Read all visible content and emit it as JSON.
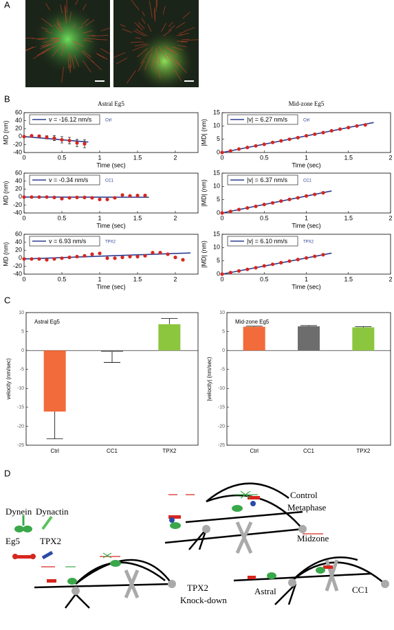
{
  "panel_labels": [
    "A",
    "B",
    "C",
    "D"
  ],
  "chart_data": [
    {
      "type": "scatter",
      "title": "Astral Eg5",
      "annotation": "Ctrl",
      "xlabel": "Time (sec)",
      "ylabel": "MD (nm)",
      "x": [
        0,
        0.1,
        0.2,
        0.3,
        0.4,
        0.5,
        0.6,
        0.7,
        0.8
      ],
      "values": [
        0,
        2,
        1,
        -2,
        -4,
        -8,
        -10,
        -16,
        -18
      ],
      "errors": [
        0,
        2,
        3,
        4,
        6,
        8,
        8,
        9,
        10
      ],
      "point_color": "#d7261e",
      "fit": {
        "name": "v = -16.12 nm/s",
        "color": "#2a3c8f",
        "x": [
          0,
          0.85
        ],
        "values": [
          0,
          -13.7
        ]
      },
      "xlim": [
        0,
        2.3
      ],
      "ylim": [
        -40,
        60
      ],
      "xticks": [
        0,
        0.5,
        1,
        1.5,
        2
      ],
      "yticks": [
        -40,
        -20,
        0,
        20,
        40,
        60
      ]
    },
    {
      "type": "scatter",
      "title": "Mid-zone Eg5",
      "annotation": "Ctrl",
      "xlabel": "Time (sec)",
      "ylabel": "|MD| (nm)",
      "x": [
        0,
        0.1,
        0.2,
        0.3,
        0.4,
        0.5,
        0.6,
        0.7,
        0.8,
        0.9,
        1,
        1.1,
        1.2,
        1.3,
        1.4,
        1.5,
        1.6,
        1.7
      ],
      "values": [
        0,
        0.6,
        1.3,
        1.9,
        2.5,
        3.1,
        3.8,
        4.4,
        5,
        5.6,
        6.3,
        6.9,
        7.5,
        8.2,
        8.8,
        9.4,
        10,
        10.4
      ],
      "point_color": "#d7261e",
      "fit": {
        "name": "|v| = 6.27 nm/s",
        "color": "#2a3c8f",
        "x": [
          0,
          1.8
        ],
        "values": [
          0,
          11.3
        ]
      },
      "xlim": [
        0,
        2
      ],
      "ylim": [
        0,
        15
      ],
      "xticks": [
        0,
        0.5,
        1,
        1.5,
        2
      ],
      "yticks": [
        0,
        5,
        10,
        15
      ]
    },
    {
      "type": "scatter",
      "annotation": "CC1",
      "xlabel": "Time (sec)",
      "ylabel": "MD (nm)",
      "x": [
        0,
        0.1,
        0.2,
        0.3,
        0.4,
        0.5,
        0.6,
        0.7,
        0.8,
        0.9,
        1,
        1.1,
        1.2,
        1.3,
        1.4,
        1.5,
        1.6
      ],
      "values": [
        0,
        0,
        0,
        0,
        -1,
        -4,
        -2,
        -1,
        -1,
        -2,
        -6,
        -6,
        -2,
        5,
        3,
        4,
        4
      ],
      "point_color": "#d7261e",
      "fit": {
        "name": "v = -0.34 nm/s",
        "color": "#2a3c8f",
        "x": [
          0,
          1.65
        ],
        "values": [
          0,
          -0.56
        ]
      },
      "xlim": [
        0,
        2.3
      ],
      "ylim": [
        -40,
        60
      ],
      "xticks": [
        0,
        0.5,
        1,
        1.5,
        2
      ],
      "yticks": [
        -40,
        -20,
        0,
        20,
        40,
        60
      ]
    },
    {
      "type": "scatter",
      "annotation": "CC1",
      "xlabel": "Time (sec)",
      "ylabel": "|MD| (nm)",
      "x": [
        0,
        0.1,
        0.2,
        0.3,
        0.4,
        0.5,
        0.6,
        0.7,
        0.8,
        0.9,
        1,
        1.1,
        1.2
      ],
      "values": [
        0,
        0.6,
        1.3,
        1.9,
        2.5,
        3.2,
        3.8,
        4.5,
        5.1,
        5.7,
        6.4,
        7,
        7.6
      ],
      "point_color": "#d7261e",
      "fit": {
        "name": "|v| = 6.37 nm/s",
        "color": "#2a3c8f",
        "x": [
          0,
          1.3
        ],
        "values": [
          0,
          8.3
        ]
      },
      "xlim": [
        0,
        2
      ],
      "ylim": [
        0,
        15
      ],
      "xticks": [
        0,
        0.5,
        1,
        1.5,
        2
      ],
      "yticks": [
        0,
        5,
        10,
        15
      ]
    },
    {
      "type": "scatter",
      "annotation": "TPX2",
      "xlabel": "Time (sec)",
      "ylabel": "MD (nm)",
      "x": [
        0,
        0.1,
        0.2,
        0.3,
        0.4,
        0.5,
        0.6,
        0.7,
        0.8,
        0.9,
        1,
        1.1,
        1.2,
        1.3,
        1.4,
        1.5,
        1.6,
        1.7,
        1.8,
        1.9,
        2,
        2.1
      ],
      "values": [
        -2,
        -2,
        -2,
        -4,
        -2,
        0,
        2,
        4,
        6,
        10,
        12,
        0,
        0,
        2,
        4,
        4,
        6,
        14,
        14,
        10,
        2,
        -4
      ],
      "point_color": "#d7261e",
      "fit": {
        "name": "v = 6.93 nm/s",
        "color": "#2a3c8f",
        "x": [
          0,
          2.2
        ],
        "values": [
          -2,
          13.2
        ]
      },
      "xlim": [
        0,
        2.3
      ],
      "ylim": [
        -40,
        60
      ],
      "xticks": [
        0,
        0.5,
        1,
        1.5,
        2
      ],
      "yticks": [
        -40,
        -20,
        0,
        20,
        40,
        60
      ]
    },
    {
      "type": "scatter",
      "annotation": "TPX2",
      "xlabel": "Time (sec)",
      "ylabel": "|MD| (nm)",
      "x": [
        0,
        0.1,
        0.2,
        0.3,
        0.4,
        0.5,
        0.6,
        0.7,
        0.8,
        0.9,
        1,
        1.1,
        1.2
      ],
      "values": [
        0,
        0.6,
        1.2,
        1.8,
        2.4,
        3.1,
        3.7,
        4.3,
        4.9,
        5.5,
        6.1,
        6.7,
        7.3
      ],
      "point_color": "#d7261e",
      "fit": {
        "name": "|v| = 6.10 nm/s",
        "color": "#2a3c8f",
        "x": [
          0,
          1.3
        ],
        "values": [
          0,
          7.9
        ]
      },
      "xlim": [
        0,
        2
      ],
      "ylim": [
        0,
        15
      ],
      "xticks": [
        0,
        0.5,
        1,
        1.5,
        2
      ],
      "yticks": [
        0,
        5,
        10,
        15
      ]
    },
    {
      "type": "bar",
      "title": "Astral Eg5",
      "ylabel": "velocity (nm/sec)",
      "categories": [
        "Ctrl",
        "CC1",
        "TPX2"
      ],
      "values": [
        -16.12,
        -0.34,
        6.93
      ],
      "errors": [
        7.2,
        2.8,
        1.5
      ],
      "colors": [
        "#f26b3a",
        "#6d6d6d",
        "#8cc63e"
      ],
      "ylim": [
        -25,
        10
      ],
      "yticks": [
        -25,
        -20,
        -15,
        -10,
        -5,
        0,
        5,
        10
      ]
    },
    {
      "type": "bar",
      "title": "Mid-zone Eg5",
      "ylabel": "|velocity| (nm/sec)",
      "categories": [
        "Ctrl",
        "CC1",
        "TPX2"
      ],
      "values": [
        6.27,
        6.37,
        6.1
      ],
      "errors": [
        0.15,
        0.2,
        0.2
      ],
      "colors": [
        "#f26b3a",
        "#6d6d6d",
        "#8cc63e"
      ],
      "ylim": [
        -25,
        10
      ],
      "yticks": [
        -25,
        -20,
        -15,
        -10,
        -5,
        0,
        5,
        10
      ]
    }
  ],
  "diagram": {
    "legend": [
      "Dynein",
      "Dynactin",
      "Eg5",
      "TPX2"
    ],
    "labels": [
      "Control",
      "Metaphase",
      "Midzone",
      "Astral",
      "CC1",
      "TPX2",
      "Knock-down"
    ]
  }
}
